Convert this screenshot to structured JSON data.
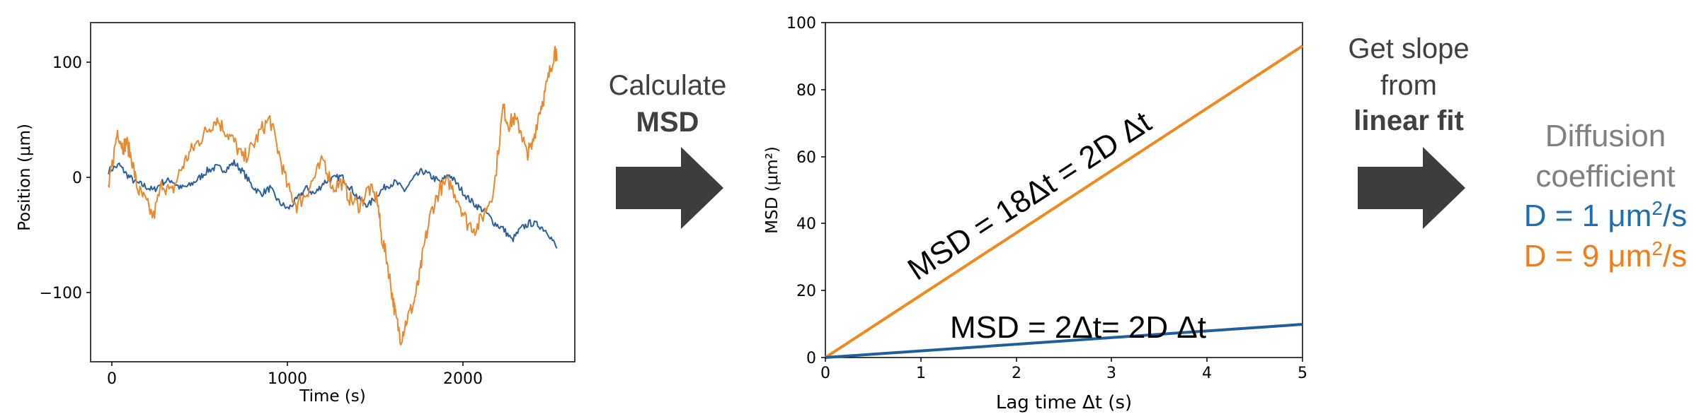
{
  "chart_data": [
    {
      "type": "line",
      "title": "",
      "xlabel": "Time (s)",
      "ylabel": "Position (μm)",
      "xlim": [
        -100,
        2600
      ],
      "ylim": [
        -160,
        133
      ],
      "xticks": [
        "0",
        "1000",
        "2000"
      ],
      "yticks": [
        "100",
        "0",
        "−100"
      ],
      "grid": false,
      "series": [
        {
          "color": "#2c5f9e",
          "x": [
            0,
            60,
            100,
            150,
            200,
            250,
            300,
            350,
            400,
            450,
            500,
            550,
            600,
            650,
            700,
            750,
            800,
            850,
            900,
            950,
            1000,
            1050,
            1100,
            1150,
            1200,
            1250,
            1300,
            1350,
            1400,
            1450,
            1500,
            1550,
            1600,
            1650,
            1700,
            1750,
            1800,
            1850,
            1900,
            1950,
            2000,
            2050,
            2100,
            2150,
            2200,
            2250,
            2300,
            2350,
            2400,
            2450,
            2500
          ],
          "y": [
            5,
            10,
            2,
            -5,
            -8,
            -12,
            -5,
            -3,
            -10,
            -8,
            -2,
            5,
            8,
            6,
            12,
            4,
            -8,
            -15,
            -10,
            -22,
            -28,
            -20,
            -10,
            -15,
            -5,
            -2,
            0,
            -10,
            -20,
            -25,
            -15,
            -8,
            -5,
            -12,
            -2,
            5,
            0,
            -5,
            2,
            -8,
            -18,
            -25,
            -30,
            -40,
            -45,
            -55,
            -45,
            -40,
            -42,
            -48,
            -62
          ]
        },
        {
          "color": "#e8892f",
          "x": [
            0,
            20,
            50,
            80,
            100,
            130,
            160,
            200,
            250,
            300,
            350,
            400,
            450,
            500,
            550,
            600,
            650,
            700,
            750,
            800,
            850,
            900,
            950,
            1000,
            1050,
            1100,
            1150,
            1200,
            1250,
            1300,
            1350,
            1400,
            1450,
            1500,
            1520,
            1550,
            1580,
            1600,
            1630,
            1660,
            1700,
            1730,
            1760,
            1800,
            1850,
            1900,
            1950,
            2000,
            2050,
            2100,
            2150,
            2200,
            2230,
            2260,
            2300,
            2330,
            2360,
            2400,
            2430,
            2460,
            2490,
            2500
          ],
          "y": [
            -10,
            10,
            40,
            25,
            30,
            15,
            -10,
            -20,
            -35,
            -5,
            -15,
            5,
            20,
            30,
            40,
            50,
            40,
            30,
            15,
            25,
            40,
            50,
            20,
            -10,
            -25,
            -15,
            0,
            15,
            -10,
            -5,
            -20,
            -25,
            -10,
            -20,
            -50,
            -70,
            -100,
            -120,
            -140,
            -125,
            -110,
            -90,
            -60,
            -30,
            -10,
            -5,
            -20,
            -40,
            -45,
            -30,
            -10,
            60,
            45,
            50,
            40,
            20,
            25,
            55,
            70,
            90,
            110,
            100
          ]
        }
      ]
    },
    {
      "type": "line",
      "title": "",
      "xlabel": "Lag time Δt (s)",
      "ylabel": "MSD (μm²)",
      "xlim": [
        0,
        5
      ],
      "ylim": [
        0,
        100
      ],
      "xticks": [
        "0",
        "1",
        "2",
        "3",
        "4",
        "5"
      ],
      "yticks": [
        "0",
        "20",
        "40",
        "60",
        "80",
        "100"
      ],
      "grid": false,
      "series": [
        {
          "color": "#e8892f",
          "x": [
            0,
            1,
            2,
            3,
            4,
            5
          ],
          "y": [
            0,
            18,
            36,
            55,
            74,
            93
          ]
        },
        {
          "color": "#2c5f9e",
          "x": [
            0,
            1,
            2,
            3,
            4,
            5
          ],
          "y": [
            0,
            2,
            4,
            6,
            8,
            10
          ]
        }
      ],
      "annotations": [
        "MSD = 18Δt = 2D Δt",
        "MSD = 2Δt= 2D Δt"
      ]
    }
  ],
  "steps": {
    "step1": {
      "line1": "Calculate",
      "line2": "MSD"
    },
    "step2": {
      "line1": "Get slope",
      "line2": "from",
      "line3": "linear fit"
    }
  },
  "result": {
    "title1": "Diffusion",
    "title2": "coefficient",
    "d1_prefix": "D = 1 μm",
    "d1_sup": "2",
    "d1_suffix": "/s",
    "d2_prefix": "D = 9 μm",
    "d2_sup": "2",
    "d2_suffix": "/s",
    "color_title": "#808080",
    "color_d1": "#1f6fb0",
    "color_d2": "#ee7d1a"
  }
}
